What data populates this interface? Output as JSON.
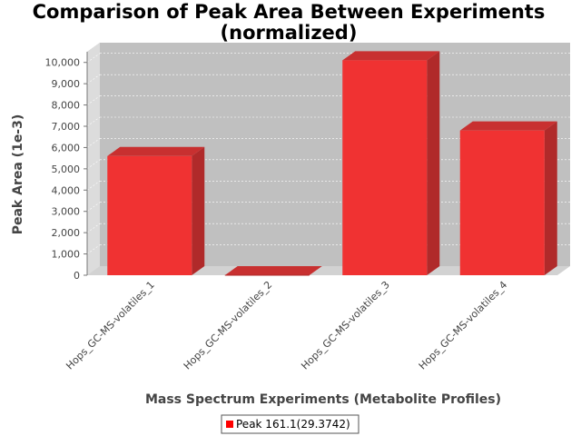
{
  "chart_data": {
    "type": "bar",
    "title": "Comparison of Peak Area Between Experiments (normalized)",
    "title_lines": [
      "Comparison of Peak Area Between Experiments",
      "(normalized)"
    ],
    "xlabel": "Mass Spectrum Experiments (Metabolite Profiles)",
    "ylabel": "Peak Area (1e-3)",
    "categories": [
      "Hops_GC-MS-volatiles_1",
      "Hops_GC-MS-volatiles_2",
      "Hops_GC-MS-volatiles_3",
      "Hops_GC-MS-volatiles_4"
    ],
    "series": [
      {
        "name": "Peak 161.1(29.3742)",
        "values": [
          5600,
          0,
          10100,
          6800
        ]
      }
    ],
    "ylim": [
      0,
      10500
    ],
    "yticks": [
      0,
      1000,
      2000,
      3000,
      4000,
      5000,
      6000,
      7000,
      8000,
      9000,
      10000
    ],
    "ytick_labels": [
      "0",
      "1,000",
      "2,000",
      "3,000",
      "4,000",
      "5,000",
      "6,000",
      "7,000",
      "8,000",
      "9,000",
      "10,000"
    ],
    "grid": true,
    "legend_position": "bottom-center",
    "colors": {
      "bar_front": "#f03232",
      "bar_side": "#b02a2a",
      "bar_top": "#c83030",
      "plot_background": "#c0c0c0",
      "wall_side": "#dcdcdc",
      "floor": "#d2d2d2",
      "gridline": "#ffffff"
    }
  }
}
